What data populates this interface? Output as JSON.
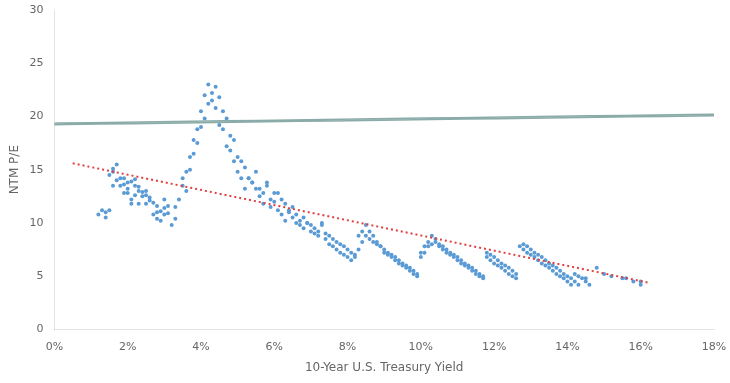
{
  "chart_data": {
    "type": "scatter",
    "xlabel": "10-Year U.S. Treasury Yield",
    "ylabel": "NTM P/E",
    "xlim": [
      0,
      0.18
    ],
    "ylim": [
      0,
      30
    ],
    "xticks": [
      {
        "value": 0.0,
        "label": "0%"
      },
      {
        "value": 0.02,
        "label": "2%"
      },
      {
        "value": 0.04,
        "label": "4%"
      },
      {
        "value": 0.06,
        "label": "6%"
      },
      {
        "value": 0.08,
        "label": "8%"
      },
      {
        "value": 0.1,
        "label": "10%"
      },
      {
        "value": 0.12,
        "label": "12%"
      },
      {
        "value": 0.14,
        "label": "14%"
      },
      {
        "value": 0.16,
        "label": "16%"
      },
      {
        "value": 0.18,
        "label": "18%"
      }
    ],
    "yticks": [
      0,
      5,
      10,
      15,
      20,
      25,
      30
    ],
    "grid": false,
    "series": [
      {
        "type": "scatter",
        "color": "#5b9bd5",
        "x": [
          0.012,
          0.013,
          0.014,
          0.015,
          0.016,
          0.017,
          0.016,
          0.018,
          0.019,
          0.02,
          0.021,
          0.022,
          0.02,
          0.023,
          0.024,
          0.025,
          0.026,
          0.027,
          0.028,
          0.029,
          0.03,
          0.031,
          0.032,
          0.033,
          0.014,
          0.015,
          0.019,
          0.022,
          0.023,
          0.024,
          0.025,
          0.027,
          0.028,
          0.029,
          0.03,
          0.031,
          0.033,
          0.016,
          0.017,
          0.02,
          0.021,
          0.023,
          0.025,
          0.026,
          0.028,
          0.03,
          0.018,
          0.019,
          0.021,
          0.022,
          0.034,
          0.035,
          0.036,
          0.037,
          0.038,
          0.039,
          0.04,
          0.041,
          0.042,
          0.043,
          0.044,
          0.045,
          0.046,
          0.047,
          0.048,
          0.049,
          0.05,
          0.051,
          0.052,
          0.053,
          0.054,
          0.055,
          0.056,
          0.057,
          0.058,
          0.059,
          0.06,
          0.061,
          0.062,
          0.063,
          0.064,
          0.065,
          0.066,
          0.067,
          0.068,
          0.069,
          0.07,
          0.071,
          0.072,
          0.073,
          0.074,
          0.075,
          0.076,
          0.077,
          0.078,
          0.079,
          0.08,
          0.081,
          0.082,
          0.083,
          0.084,
          0.085,
          0.086,
          0.087,
          0.088,
          0.089,
          0.09,
          0.091,
          0.092,
          0.093,
          0.094,
          0.095,
          0.096,
          0.097,
          0.098,
          0.099,
          0.1,
          0.101,
          0.102,
          0.103,
          0.104,
          0.105,
          0.106,
          0.107,
          0.108,
          0.109,
          0.11,
          0.111,
          0.112,
          0.113,
          0.114,
          0.115,
          0.116,
          0.117,
          0.118,
          0.119,
          0.12,
          0.121,
          0.122,
          0.123,
          0.124,
          0.125,
          0.126,
          0.127,
          0.128,
          0.129,
          0.13,
          0.131,
          0.132,
          0.133,
          0.134,
          0.135,
          0.136,
          0.137,
          0.138,
          0.139,
          0.14,
          0.141,
          0.142,
          0.143,
          0.144,
          0.145,
          0.146,
          0.15,
          0.155,
          0.158,
          0.16,
          0.035,
          0.036,
          0.037,
          0.038,
          0.039,
          0.04,
          0.041,
          0.042,
          0.043,
          0.044,
          0.045,
          0.046,
          0.047,
          0.048,
          0.049,
          0.05,
          0.051,
          0.052,
          0.053,
          0.054,
          0.055,
          0.056,
          0.057,
          0.058,
          0.059,
          0.06,
          0.061,
          0.062,
          0.063,
          0.064,
          0.065,
          0.066,
          0.067,
          0.068,
          0.069,
          0.07,
          0.071,
          0.072,
          0.073,
          0.074,
          0.075,
          0.076,
          0.077,
          0.078,
          0.079,
          0.08,
          0.081,
          0.082,
          0.083,
          0.084,
          0.085,
          0.086,
          0.087,
          0.088,
          0.089,
          0.09,
          0.091,
          0.092,
          0.093,
          0.094,
          0.095,
          0.096,
          0.097,
          0.098,
          0.099,
          0.1,
          0.101,
          0.102,
          0.103,
          0.104,
          0.105,
          0.106,
          0.107,
          0.108,
          0.109,
          0.11,
          0.111,
          0.112,
          0.113,
          0.114,
          0.115,
          0.116,
          0.117,
          0.118,
          0.119,
          0.12,
          0.121,
          0.122,
          0.123,
          0.124,
          0.125,
          0.126,
          0.128,
          0.129,
          0.13,
          0.131,
          0.132,
          0.133,
          0.134,
          0.135,
          0.136,
          0.137,
          0.138,
          0.139,
          0.14,
          0.141,
          0.142,
          0.143,
          0.145,
          0.148,
          0.152,
          0.156,
          0.16
        ],
        "values": [
          10.8,
          11.2,
          10.5,
          14.5,
          15.1,
          15.5,
          14.8,
          14.2,
          13.6,
          13.2,
          13.9,
          14.1,
          12.8,
          13.4,
          12.9,
          12.6,
          12.1,
          11.9,
          11.6,
          11.1,
          11.4,
          10.9,
          9.8,
          10.4,
          11.0,
          11.2,
          14.2,
          12.6,
          13.0,
          12.5,
          11.8,
          10.8,
          10.4,
          10.2,
          12.2,
          11.6,
          11.5,
          13.5,
          14.0,
          13.8,
          12.2,
          11.8,
          13.0,
          12.4,
          11.0,
          10.8,
          13.5,
          12.8,
          11.8,
          13.5,
          12.2,
          13.5,
          13.0,
          15.0,
          16.5,
          17.5,
          19.0,
          19.8,
          21.2,
          22.2,
          22.8,
          21.8,
          20.5,
          19.8,
          18.2,
          17.8,
          16.2,
          15.8,
          15.2,
          14.2,
          13.8,
          14.8,
          13.2,
          12.8,
          13.5,
          12.2,
          12.0,
          12.8,
          12.2,
          11.8,
          11.0,
          11.5,
          10.8,
          10.2,
          10.5,
          10.0,
          9.8,
          9.5,
          9.2,
          9.8,
          9.0,
          8.8,
          8.5,
          8.2,
          8.0,
          7.8,
          7.5,
          7.2,
          7.0,
          7.5,
          8.2,
          8.8,
          8.5,
          8.2,
          8.0,
          7.8,
          7.5,
          7.2,
          7.0,
          6.8,
          6.5,
          6.2,
          6.0,
          5.8,
          5.5,
          5.2,
          6.8,
          7.2,
          7.8,
          8.0,
          8.2,
          7.8,
          7.5,
          7.2,
          7.0,
          6.8,
          6.5,
          6.2,
          6.0,
          5.8,
          5.5,
          5.2,
          5.0,
          4.8,
          6.8,
          6.5,
          6.2,
          6.0,
          5.8,
          5.5,
          5.2,
          5.0,
          4.8,
          7.8,
          7.5,
          7.2,
          7.0,
          6.8,
          6.5,
          6.2,
          6.0,
          5.8,
          5.5,
          5.2,
          5.0,
          4.8,
          4.5,
          4.2,
          5.2,
          5.0,
          4.8,
          4.5,
          4.2,
          5.2,
          4.8,
          4.5,
          4.2,
          14.2,
          14.8,
          16.2,
          17.8,
          18.8,
          20.5,
          22.0,
          23.0,
          21.5,
          20.8,
          19.2,
          18.8,
          17.2,
          16.8,
          15.8,
          14.8,
          14.2,
          13.2,
          14.2,
          13.8,
          13.2,
          12.5,
          11.8,
          13.8,
          11.5,
          12.8,
          11.2,
          10.8,
          10.2,
          11.2,
          10.5,
          10.0,
          9.8,
          9.5,
          10.0,
          9.2,
          9.0,
          8.8,
          10.0,
          8.5,
          8.0,
          7.8,
          7.5,
          7.2,
          7.0,
          6.8,
          6.5,
          6.8,
          8.8,
          9.2,
          9.8,
          9.2,
          8.8,
          8.2,
          7.8,
          7.2,
          7.0,
          6.8,
          6.5,
          6.2,
          6.0,
          5.8,
          5.5,
          5.2,
          5.0,
          7.2,
          7.8,
          8.2,
          8.8,
          8.5,
          8.0,
          7.8,
          7.5,
          7.2,
          7.0,
          6.8,
          6.5,
          6.2,
          6.0,
          5.8,
          5.5,
          5.2,
          5.0,
          7.2,
          7.0,
          6.8,
          6.5,
          6.2,
          6.0,
          5.8,
          5.5,
          5.2,
          8.0,
          7.8,
          7.5,
          7.2,
          7.0,
          6.8,
          6.5,
          6.2,
          6.0,
          5.8,
          5.5,
          5.2,
          5.0,
          4.8,
          4.5,
          4.2,
          4.8,
          5.8,
          5.0,
          4.8,
          4.5
        ]
      },
      {
        "type": "line",
        "color": "#e04040",
        "line_style": "dotted",
        "x": [
          0.005,
          0.162
        ],
        "values": [
          15.6,
          4.4
        ]
      }
    ],
    "ellipse": {
      "cx": 0.043,
      "cy": 19.5,
      "width": 0.03,
      "height": 10.0,
      "angle": -12,
      "color": "#8aaba8"
    }
  }
}
